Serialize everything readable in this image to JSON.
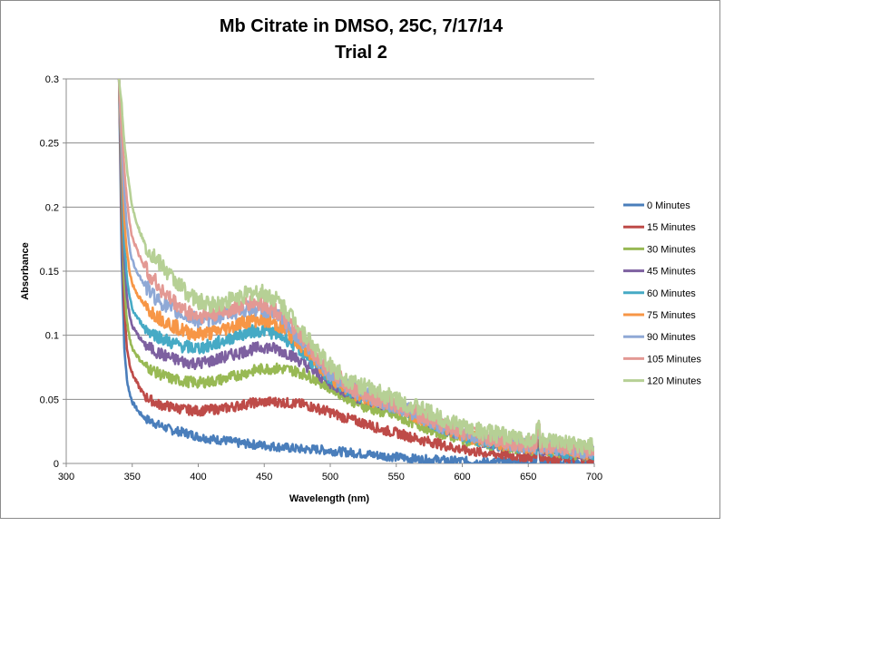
{
  "chart_data": {
    "type": "line",
    "title": "Mb Citrate in DMSO, 25C, 7/17/14",
    "subtitle": "Trial 2",
    "xlabel": "Wavelength (nm)",
    "ylabel": "Absorbance",
    "xlim": [
      300,
      700
    ],
    "ylim": [
      0,
      0.3
    ],
    "xticks": [
      "300",
      "350",
      "400",
      "450",
      "500",
      "550",
      "600",
      "650",
      "700"
    ],
    "yticks": [
      "0",
      "0.05",
      "0.1",
      "0.15",
      "0.2",
      "0.25",
      "0.3"
    ],
    "grid": "horizontal",
    "legend": "right",
    "x": [
      340,
      342,
      344,
      346,
      348,
      350,
      355,
      360,
      370,
      380,
      390,
      400,
      410,
      420,
      430,
      440,
      450,
      460,
      470,
      480,
      490,
      500,
      510,
      520,
      530,
      540,
      550,
      560,
      570,
      580,
      590,
      600,
      610,
      620,
      630,
      640,
      650,
      655,
      660,
      670,
      680,
      690,
      700
    ],
    "series": [
      {
        "name": "0 Minutes",
        "color": "#4a7ebb",
        "values": [
          0.3,
          0.16,
          0.09,
          0.065,
          0.055,
          0.048,
          0.04,
          0.035,
          0.03,
          0.026,
          0.024,
          0.021,
          0.019,
          0.018,
          0.016,
          0.015,
          0.014,
          0.013,
          0.012,
          0.011,
          0.011,
          0.01,
          0.009,
          0.008,
          0.007,
          0.006,
          0.005,
          0.004,
          0.003,
          0.003,
          0.002,
          0.002,
          0.001,
          0.001,
          0.001,
          0.001,
          0.001,
          0.001,
          0.001,
          0.001,
          0.001,
          0.001,
          0.001
        ]
      },
      {
        "name": "15 Minutes",
        "color": "#be4b48",
        "values": [
          0.3,
          0.19,
          0.12,
          0.09,
          0.078,
          0.07,
          0.06,
          0.052,
          0.046,
          0.044,
          0.042,
          0.041,
          0.042,
          0.043,
          0.045,
          0.047,
          0.048,
          0.048,
          0.047,
          0.046,
          0.043,
          0.04,
          0.036,
          0.033,
          0.03,
          0.026,
          0.024,
          0.021,
          0.018,
          0.016,
          0.013,
          0.011,
          0.009,
          0.008,
          0.007,
          0.006,
          0.005,
          0.005,
          0.005,
          0.004,
          0.004,
          0.004,
          0.003
        ]
      },
      {
        "name": "30 Minutes",
        "color": "#98b954",
        "values": [
          0.3,
          0.21,
          0.14,
          0.11,
          0.098,
          0.09,
          0.082,
          0.076,
          0.07,
          0.066,
          0.064,
          0.063,
          0.064,
          0.066,
          0.069,
          0.072,
          0.074,
          0.074,
          0.073,
          0.07,
          0.065,
          0.059,
          0.053,
          0.047,
          0.043,
          0.04,
          0.037,
          0.033,
          0.029,
          0.025,
          0.022,
          0.019,
          0.017,
          0.015,
          0.013,
          0.012,
          0.011,
          0.01,
          0.01,
          0.009,
          0.008,
          0.007,
          0.006
        ]
      },
      {
        "name": "45 Minutes",
        "color": "#7d60a0",
        "values": [
          0.3,
          0.22,
          0.16,
          0.13,
          0.115,
          0.107,
          0.099,
          0.092,
          0.086,
          0.082,
          0.079,
          0.078,
          0.08,
          0.083,
          0.086,
          0.089,
          0.091,
          0.089,
          0.085,
          0.078,
          0.07,
          0.063,
          0.057,
          0.052,
          0.049,
          0.046,
          0.044,
          0.04,
          0.035,
          0.03,
          0.026,
          0.022,
          0.019,
          0.016,
          0.014,
          0.013,
          0.012,
          0.012,
          0.011,
          0.01,
          0.009,
          0.008,
          0.007
        ]
      },
      {
        "name": "60 Minutes",
        "color": "#46aac5",
        "values": [
          0.3,
          0.23,
          0.17,
          0.145,
          0.13,
          0.12,
          0.112,
          0.105,
          0.099,
          0.094,
          0.091,
          0.09,
          0.092,
          0.096,
          0.1,
          0.103,
          0.104,
          0.101,
          0.095,
          0.086,
          0.075,
          0.066,
          0.059,
          0.054,
          0.05,
          0.047,
          0.044,
          0.04,
          0.035,
          0.03,
          0.026,
          0.022,
          0.019,
          0.017,
          0.015,
          0.013,
          0.012,
          0.012,
          0.011,
          0.01,
          0.009,
          0.008,
          0.007
        ]
      },
      {
        "name": "75 Minutes",
        "color": "#f79646",
        "values": [
          0.3,
          0.24,
          0.19,
          0.165,
          0.15,
          0.14,
          0.13,
          0.122,
          0.114,
          0.108,
          0.103,
          0.101,
          0.102,
          0.105,
          0.109,
          0.112,
          0.112,
          0.108,
          0.1,
          0.09,
          0.078,
          0.068,
          0.06,
          0.054,
          0.05,
          0.047,
          0.044,
          0.04,
          0.035,
          0.031,
          0.027,
          0.023,
          0.02,
          0.018,
          0.016,
          0.014,
          0.013,
          0.013,
          0.012,
          0.011,
          0.01,
          0.009,
          0.008
        ]
      },
      {
        "name": "90 Minutes",
        "color": "#8fa9d6",
        "values": [
          0.3,
          0.25,
          0.21,
          0.185,
          0.168,
          0.158,
          0.147,
          0.138,
          0.127,
          0.12,
          0.115,
          0.112,
          0.113,
          0.116,
          0.119,
          0.121,
          0.12,
          0.115,
          0.105,
          0.094,
          0.081,
          0.07,
          0.062,
          0.056,
          0.052,
          0.048,
          0.045,
          0.041,
          0.036,
          0.031,
          0.027,
          0.024,
          0.021,
          0.019,
          0.017,
          0.015,
          0.014,
          0.013,
          0.013,
          0.012,
          0.011,
          0.01,
          0.009
        ]
      },
      {
        "name": "105 Minutes",
        "color": "#e39994",
        "values": [
          0.3,
          0.26,
          0.23,
          0.205,
          0.188,
          0.176,
          0.163,
          0.152,
          0.138,
          0.127,
          0.119,
          0.115,
          0.116,
          0.119,
          0.122,
          0.125,
          0.124,
          0.118,
          0.108,
          0.096,
          0.083,
          0.072,
          0.064,
          0.057,
          0.053,
          0.049,
          0.046,
          0.042,
          0.037,
          0.032,
          0.028,
          0.025,
          0.022,
          0.02,
          0.018,
          0.016,
          0.015,
          0.014,
          0.014,
          0.013,
          0.012,
          0.011,
          0.01
        ]
      },
      {
        "name": "120 Minutes",
        "color": "#b6d095",
        "values": [
          0.3,
          0.28,
          0.25,
          0.23,
          0.215,
          0.2,
          0.183,
          0.17,
          0.157,
          0.145,
          0.135,
          0.126,
          0.124,
          0.126,
          0.13,
          0.133,
          0.133,
          0.127,
          0.116,
          0.102,
          0.088,
          0.076,
          0.068,
          0.062,
          0.058,
          0.054,
          0.05,
          0.046,
          0.042,
          0.037,
          0.033,
          0.029,
          0.026,
          0.024,
          0.022,
          0.02,
          0.019,
          0.018,
          0.018,
          0.016,
          0.015,
          0.014,
          0.013
        ]
      }
    ]
  }
}
